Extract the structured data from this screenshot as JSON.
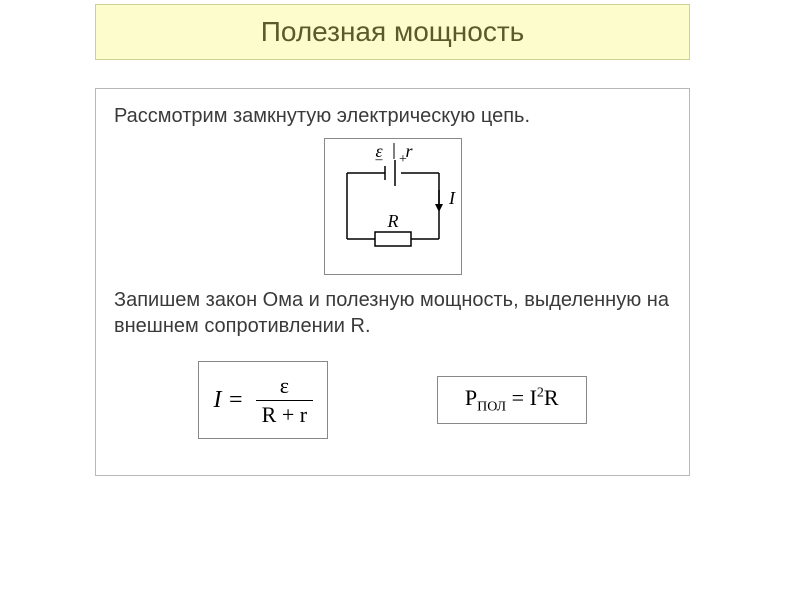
{
  "colors": {
    "title_bg": "#fcfccc",
    "title_border": "#d0d090",
    "title_text": "#5a5a2a",
    "content_border": "#b8b8b8",
    "body_text": "#3a3a3a",
    "circuit_border": "#888888",
    "formula_border": "#888888",
    "circuit_stroke": "#000000"
  },
  "title": "Полезная мощность",
  "line1": "Рассмотрим замкнутую электрическую цепь.",
  "line2": "Запишем закон Ома и полезную мощность, выделенную на внешнем сопротивлении R.",
  "circuit": {
    "width": 136,
    "height": 130,
    "labels": {
      "emf": "ε",
      "r": "r",
      "R": "R",
      "I": "I"
    },
    "label_fontsize": 18,
    "label_font": "Times New Roman, serif",
    "stroke_width": 1.5
  },
  "formula1": {
    "lhs": "I",
    "numerator": "ε",
    "denominator": "R + r"
  },
  "formula2": {
    "P": "P",
    "sub": "ПОЛ",
    "eq": " = I",
    "sup": "2",
    "tail": "R"
  }
}
